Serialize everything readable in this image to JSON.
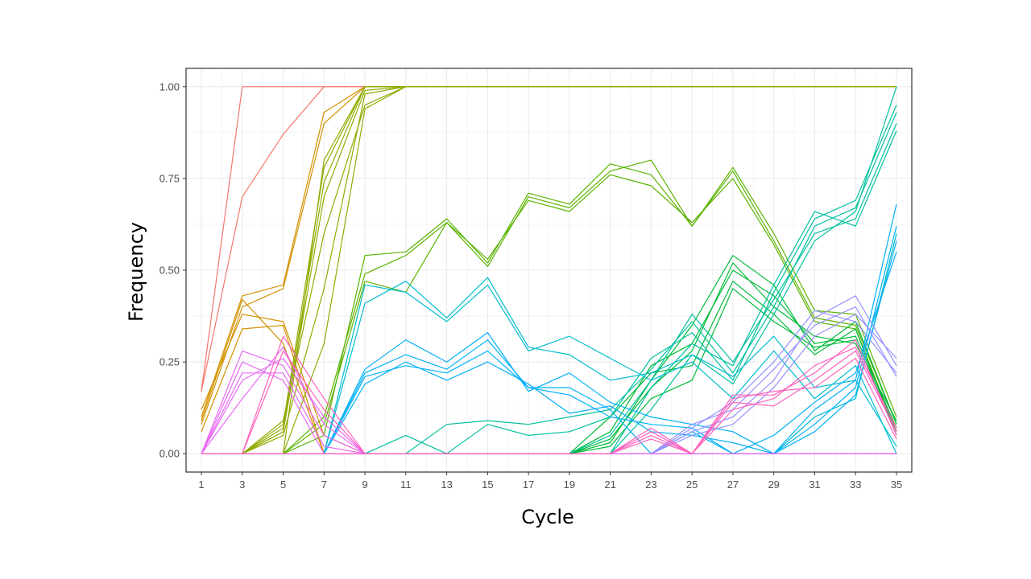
{
  "chart_data": {
    "type": "line",
    "title": "",
    "xlabel": "Cycle",
    "ylabel": "Frequency",
    "xlim": [
      0.25,
      35.75
    ],
    "ylim": [
      -0.05,
      1.05
    ],
    "x": [
      1,
      3,
      5,
      7,
      9,
      11,
      13,
      15,
      17,
      19,
      21,
      23,
      25,
      27,
      29,
      31,
      33,
      35
    ],
    "x_ticks": [
      "1",
      "3",
      "5",
      "7",
      "9",
      "11",
      "13",
      "15",
      "17",
      "19",
      "21",
      "23",
      "25",
      "27",
      "29",
      "31",
      "33",
      "35"
    ],
    "y_ticks": [
      "0.00",
      "0.25",
      "0.50",
      "0.75",
      "1.00"
    ],
    "y_tick_values": [
      0,
      0.25,
      0.5,
      0.75,
      1.0
    ],
    "grid": true,
    "legend": "none",
    "series": [
      {
        "color": "#F8766D",
        "values": [
          0.17,
          1.0,
          1.0,
          1.0,
          1.0,
          1.0,
          1.0,
          1.0,
          1.0,
          1.0,
          1.0,
          1.0,
          1.0,
          1.0,
          1.0,
          1.0,
          1.0,
          1.0
        ]
      },
      {
        "color": "#F8766D",
        "values": [
          0.17,
          0.7,
          0.87,
          1.0,
          1.0,
          1.0,
          1.0,
          1.0,
          1.0,
          1.0,
          1.0,
          1.0,
          1.0,
          1.0,
          1.0,
          1.0,
          1.0,
          1.0
        ]
      },
      {
        "color": "#D39200",
        "values": [
          0.1,
          0.43,
          0.46,
          0.93,
          1.0,
          1.0,
          1.0,
          1.0,
          1.0,
          1.0,
          1.0,
          1.0,
          1.0,
          1.0,
          1.0,
          1.0,
          1.0,
          1.0
        ]
      },
      {
        "color": "#D39200",
        "values": [
          0.08,
          0.4,
          0.45,
          0.9,
          1.0,
          1.0,
          1.0,
          1.0,
          1.0,
          1.0,
          1.0,
          1.0,
          1.0,
          1.0,
          1.0,
          1.0,
          1.0,
          1.0
        ]
      },
      {
        "color": "#D39200",
        "values": [
          0.12,
          0.38,
          0.36,
          0.05,
          0.0,
          0.0,
          0.0,
          0.0,
          0.0,
          0.0,
          0.0,
          0.0,
          0.0,
          0.0,
          0.0,
          0.0,
          0.0,
          0.0
        ]
      },
      {
        "color": "#D39200",
        "values": [
          0.06,
          0.34,
          0.35,
          0.0,
          0.0,
          0.0,
          0.0,
          0.0,
          0.0,
          0.0,
          0.0,
          0.0,
          0.0,
          0.0,
          0.0,
          0.0,
          0.0,
          0.0
        ]
      },
      {
        "color": "#D39200",
        "values": [
          0.09,
          0.42,
          0.3,
          0.0,
          0.0,
          0.0,
          0.0,
          0.0,
          0.0,
          0.0,
          0.0,
          0.0,
          0.0,
          0.0,
          0.0,
          0.0,
          0.0,
          0.0
        ]
      },
      {
        "color": "#93AA00",
        "values": [
          0.0,
          0.0,
          0.08,
          0.78,
          1.0,
          1.0,
          1.0,
          1.0,
          1.0,
          1.0,
          1.0,
          1.0,
          1.0,
          1.0,
          1.0,
          1.0,
          1.0,
          1.0
        ]
      },
      {
        "color": "#93AA00",
        "values": [
          0.0,
          0.0,
          0.06,
          0.7,
          0.99,
          1.0,
          1.0,
          1.0,
          1.0,
          1.0,
          1.0,
          1.0,
          1.0,
          1.0,
          1.0,
          1.0,
          1.0,
          1.0
        ]
      },
      {
        "color": "#93AA00",
        "values": [
          0.0,
          0.0,
          0.09,
          0.6,
          0.95,
          1.0,
          1.0,
          1.0,
          1.0,
          1.0,
          1.0,
          1.0,
          1.0,
          1.0,
          1.0,
          1.0,
          1.0,
          1.0
        ]
      },
      {
        "color": "#93AA00",
        "values": [
          0.0,
          0.0,
          0.0,
          0.8,
          1.0,
          1.0,
          1.0,
          1.0,
          1.0,
          1.0,
          1.0,
          1.0,
          1.0,
          1.0,
          1.0,
          1.0,
          1.0,
          1.0
        ]
      },
      {
        "color": "#93AA00",
        "values": [
          0.0,
          0.0,
          0.05,
          0.45,
          0.98,
          1.0,
          1.0,
          1.0,
          1.0,
          1.0,
          1.0,
          1.0,
          1.0,
          1.0,
          1.0,
          1.0,
          1.0,
          1.0
        ]
      },
      {
        "color": "#93AA00",
        "values": [
          0.0,
          0.0,
          0.0,
          0.3,
          0.94,
          1.0,
          1.0,
          1.0,
          1.0,
          1.0,
          1.0,
          1.0,
          1.0,
          1.0,
          1.0,
          1.0,
          1.0,
          1.0
        ]
      },
      {
        "color": "#93AA00",
        "values": [
          0.0,
          0.0,
          0.07,
          0.74,
          1.0,
          1.0,
          1.0,
          1.0,
          1.0,
          1.0,
          1.0,
          1.0,
          1.0,
          1.0,
          1.0,
          1.0,
          1.0,
          1.0
        ]
      },
      {
        "color": "#5BB300",
        "values": [
          0.0,
          0.0,
          0.0,
          0.05,
          0.54,
          0.55,
          0.64,
          0.52,
          0.71,
          0.68,
          0.79,
          0.76,
          0.62,
          0.78,
          0.6,
          0.39,
          0.38,
          0.1
        ]
      },
      {
        "color": "#5BB300",
        "values": [
          0.0,
          0.0,
          0.0,
          0.1,
          0.49,
          0.54,
          0.63,
          0.51,
          0.7,
          0.67,
          0.77,
          0.8,
          0.62,
          0.77,
          0.58,
          0.37,
          0.35,
          0.08
        ]
      },
      {
        "color": "#5BB300",
        "values": [
          0.0,
          0.0,
          0.0,
          0.08,
          0.47,
          0.44,
          0.63,
          0.53,
          0.69,
          0.66,
          0.76,
          0.73,
          0.63,
          0.75,
          0.57,
          0.36,
          0.34,
          0.06
        ]
      },
      {
        "color": "#00BA38",
        "values": [
          0.0,
          0.0,
          0.0,
          0.0,
          0.0,
          0.0,
          0.0,
          0.0,
          0.0,
          0.0,
          0.03,
          0.2,
          0.35,
          0.54,
          0.46,
          0.28,
          0.36,
          0.08
        ]
      },
      {
        "color": "#00BA38",
        "values": [
          0.0,
          0.0,
          0.0,
          0.0,
          0.0,
          0.0,
          0.0,
          0.0,
          0.0,
          0.0,
          0.06,
          0.24,
          0.3,
          0.5,
          0.43,
          0.3,
          0.32,
          0.07
        ]
      },
      {
        "color": "#00BA38",
        "values": [
          0.0,
          0.0,
          0.0,
          0.0,
          0.0,
          0.0,
          0.0,
          0.0,
          0.0,
          0.0,
          0.04,
          0.18,
          0.28,
          0.52,
          0.4,
          0.32,
          0.3,
          0.09
        ]
      },
      {
        "color": "#00BA38",
        "values": [
          0.0,
          0.0,
          0.0,
          0.0,
          0.0,
          0.0,
          0.0,
          0.0,
          0.0,
          0.0,
          0.1,
          0.22,
          0.24,
          0.47,
          0.38,
          0.27,
          0.34,
          0.05
        ]
      },
      {
        "color": "#00BA38",
        "values": [
          0.0,
          0.0,
          0.0,
          0.0,
          0.0,
          0.0,
          0.0,
          0.0,
          0.0,
          0.0,
          0.02,
          0.15,
          0.2,
          0.45,
          0.36,
          0.29,
          0.31,
          0.06
        ]
      },
      {
        "color": "#00C19F",
        "values": [
          0.0,
          0.0,
          0.0,
          0.0,
          0.0,
          0.0,
          0.08,
          0.09,
          0.08,
          0.1,
          0.12,
          0.23,
          0.36,
          0.22,
          0.4,
          0.62,
          0.67,
          0.93
        ]
      },
      {
        "color": "#00C19F",
        "values": [
          0.0,
          0.0,
          0.0,
          0.0,
          0.0,
          0.05,
          0.0,
          0.08,
          0.05,
          0.06,
          0.1,
          0.26,
          0.33,
          0.2,
          0.44,
          0.64,
          0.69,
          0.95
        ]
      },
      {
        "color": "#00C19F",
        "values": [
          0.0,
          0.0,
          0.0,
          0.0,
          0.0,
          0.0,
          0.0,
          0.0,
          0.0,
          0.0,
          0.05,
          0.2,
          0.38,
          0.25,
          0.42,
          0.6,
          0.64,
          0.9
        ]
      },
      {
        "color": "#00C19F",
        "values": [
          0.0,
          0.0,
          0.0,
          0.0,
          0.0,
          0.0,
          0.0,
          0.0,
          0.0,
          0.0,
          0.0,
          0.18,
          0.3,
          0.24,
          0.46,
          0.66,
          0.62,
          0.88
        ]
      },
      {
        "color": "#00C19F",
        "values": [
          0.0,
          0.0,
          0.0,
          0.0,
          0.0,
          0.0,
          0.0,
          0.0,
          0.0,
          0.0,
          0.0,
          0.12,
          0.27,
          0.19,
          0.38,
          0.58,
          0.66,
          1.0
        ]
      },
      {
        "color": "#00BDD0",
        "values": [
          0.0,
          0.0,
          0.0,
          0.0,
          0.41,
          0.47,
          0.37,
          0.48,
          0.29,
          0.27,
          0.2,
          0.22,
          0.27,
          0.21,
          0.32,
          0.18,
          0.2,
          0.02
        ]
      },
      {
        "color": "#00BDD0",
        "values": [
          0.0,
          0.0,
          0.0,
          0.0,
          0.46,
          0.44,
          0.36,
          0.46,
          0.28,
          0.32,
          0.26,
          0.2,
          0.25,
          0.15,
          0.28,
          0.15,
          0.24,
          0.0
        ]
      },
      {
        "color": "#00BDD0",
        "values": [
          0.0,
          0.0,
          0.0,
          0.0,
          0.0,
          0.0,
          0.0,
          0.0,
          0.0,
          0.0,
          0.0,
          0.0,
          0.0,
          0.0,
          0.0,
          0.0,
          0.0,
          0.0
        ]
      },
      {
        "color": "#00BDD0",
        "values": [
          0.0,
          0.0,
          0.0,
          0.0,
          0.0,
          0.0,
          0.0,
          0.0,
          0.0,
          0.0,
          0.0,
          0.0,
          0.0,
          0.0,
          0.0,
          0.1,
          0.15,
          0.6
        ]
      },
      {
        "color": "#00B0F6",
        "values": [
          0.0,
          0.0,
          0.0,
          0.0,
          0.23,
          0.31,
          0.25,
          0.33,
          0.17,
          0.22,
          0.14,
          0.1,
          0.08,
          0.06,
          0.0,
          0.12,
          0.2,
          0.68
        ]
      },
      {
        "color": "#00B0F6",
        "values": [
          0.0,
          0.0,
          0.0,
          0.0,
          0.19,
          0.25,
          0.2,
          0.25,
          0.19,
          0.11,
          0.13,
          0.06,
          0.05,
          0.03,
          0.0,
          0.08,
          0.18,
          0.62
        ]
      },
      {
        "color": "#00B0F6",
        "values": [
          0.0,
          0.0,
          0.0,
          0.0,
          0.22,
          0.27,
          0.23,
          0.31,
          0.18,
          0.16,
          0.1,
          0.08,
          0.07,
          0.0,
          0.05,
          0.14,
          0.22,
          0.55
        ]
      },
      {
        "color": "#00B0F6",
        "values": [
          0.0,
          0.0,
          0.0,
          0.0,
          0.21,
          0.24,
          0.22,
          0.28,
          0.18,
          0.18,
          0.12,
          0.0,
          0.06,
          0.0,
          0.0,
          0.06,
          0.16,
          0.58
        ]
      },
      {
        "color": "#9590FF",
        "values": [
          0.0,
          0.0,
          0.0,
          0.0,
          0.0,
          0.0,
          0.0,
          0.0,
          0.0,
          0.0,
          0.0,
          0.0,
          0.06,
          0.1,
          0.2,
          0.37,
          0.43,
          0.24
        ]
      },
      {
        "color": "#9590FF",
        "values": [
          0.0,
          0.0,
          0.0,
          0.0,
          0.0,
          0.0,
          0.0,
          0.0,
          0.0,
          0.0,
          0.0,
          0.0,
          0.08,
          0.12,
          0.23,
          0.35,
          0.4,
          0.21
        ]
      },
      {
        "color": "#9590FF",
        "values": [
          0.0,
          0.0,
          0.0,
          0.0,
          0.0,
          0.0,
          0.0,
          0.0,
          0.0,
          0.0,
          0.0,
          0.0,
          0.05,
          0.08,
          0.18,
          0.32,
          0.38,
          0.26
        ]
      },
      {
        "color": "#9590FF",
        "values": [
          0.0,
          0.0,
          0.0,
          0.0,
          0.0,
          0.0,
          0.0,
          0.0,
          0.0,
          0.0,
          0.0,
          0.0,
          0.07,
          0.14,
          0.25,
          0.39,
          0.36,
          0.22
        ]
      },
      {
        "color": "#E76BF3",
        "values": [
          0.0,
          0.28,
          0.24,
          0.05,
          0.0,
          0.0,
          0.0,
          0.0,
          0.0,
          0.0,
          0.0,
          0.0,
          0.0,
          0.0,
          0.0,
          0.0,
          0.0,
          0.0
        ]
      },
      {
        "color": "#E76BF3",
        "values": [
          0.0,
          0.25,
          0.2,
          0.0,
          0.0,
          0.0,
          0.0,
          0.0,
          0.0,
          0.0,
          0.0,
          0.0,
          0.0,
          0.0,
          0.0,
          0.0,
          0.0,
          0.0
        ]
      },
      {
        "color": "#E76BF3",
        "values": [
          0.0,
          0.2,
          0.26,
          0.1,
          0.0,
          0.0,
          0.0,
          0.0,
          0.0,
          0.0,
          0.0,
          0.0,
          0.0,
          0.0,
          0.0,
          0.0,
          0.0,
          0.0
        ]
      },
      {
        "color": "#E76BF3",
        "values": [
          0.0,
          0.15,
          0.29,
          0.08,
          0.0,
          0.0,
          0.0,
          0.0,
          0.0,
          0.0,
          0.0,
          0.0,
          0.0,
          0.0,
          0.0,
          0.0,
          0.0,
          0.0
        ]
      },
      {
        "color": "#E76BF3",
        "values": [
          0.0,
          0.22,
          0.22,
          0.02,
          0.0,
          0.0,
          0.0,
          0.0,
          0.0,
          0.0,
          0.0,
          0.0,
          0.0,
          0.0,
          0.0,
          0.0,
          0.0,
          0.0
        ]
      },
      {
        "color": "#FF62BC",
        "values": [
          0.0,
          0.0,
          0.32,
          0.15,
          0.0,
          0.0,
          0.0,
          0.0,
          0.0,
          0.0,
          0.0,
          0.06,
          0.0,
          0.16,
          0.16,
          0.22,
          0.31,
          0.05
        ]
      },
      {
        "color": "#FF62BC",
        "values": [
          0.0,
          0.0,
          0.28,
          0.12,
          0.0,
          0.0,
          0.0,
          0.0,
          0.0,
          0.0,
          0.0,
          0.04,
          0.0,
          0.14,
          0.13,
          0.2,
          0.28,
          0.06
        ]
      },
      {
        "color": "#FF62BC",
        "values": [
          0.0,
          0.0,
          0.0,
          0.0,
          0.0,
          0.0,
          0.0,
          0.0,
          0.0,
          0.0,
          0.0,
          0.07,
          0.0,
          0.12,
          0.15,
          0.24,
          0.29,
          0.07
        ]
      },
      {
        "color": "#FF62BC",
        "values": [
          0.0,
          0.0,
          0.0,
          0.0,
          0.0,
          0.0,
          0.0,
          0.0,
          0.0,
          0.0,
          0.0,
          0.05,
          0.0,
          0.15,
          0.17,
          0.18,
          0.26,
          0.04
        ]
      }
    ]
  }
}
